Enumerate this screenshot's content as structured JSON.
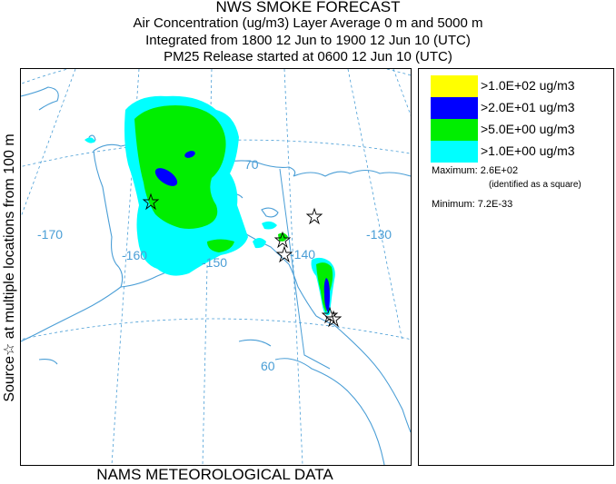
{
  "title": {
    "line1": "NWS SMOKE FORECAST",
    "line2": "Air Concentration (ug/m3) Layer Average    0 m and  5000 m",
    "line3": "Integrated from 1800 12 Jun to 1900 12 Jun 10 (UTC)",
    "line4": "PM25 Release started at 0600 12 Jun 10 (UTC)"
  },
  "side_label": "Source☆   at multiple locations     from   100 m",
  "bottom_label": "NAMS METEOROLOGICAL DATA",
  "map": {
    "lon_labels": [
      "-170",
      "-160",
      "-150",
      "-140",
      "-130"
    ],
    "lat_labels": [
      "70",
      "60"
    ],
    "colors": {
      "land_outline": "#4a9ed6",
      "grid": "#4a9ed6"
    }
  },
  "legend": {
    "items": [
      {
        "label": ">1.0E+02 ug/m3",
        "color": "#ffff00"
      },
      {
        "label": ">2.0E+01 ug/m3",
        "color": "#0000ff"
      },
      {
        "label": ">5.0E+00 ug/m3",
        "color": "#00ee00"
      },
      {
        "label": ">1.0E+00 ug/m3",
        "color": "#00ffff"
      }
    ],
    "maximum_label": "Maximum:",
    "maximum_value": "2.6E+02",
    "maximum_note": "(identified as a square)",
    "minimum_label": "Minimum:",
    "minimum_value": "7.2E-33"
  }
}
